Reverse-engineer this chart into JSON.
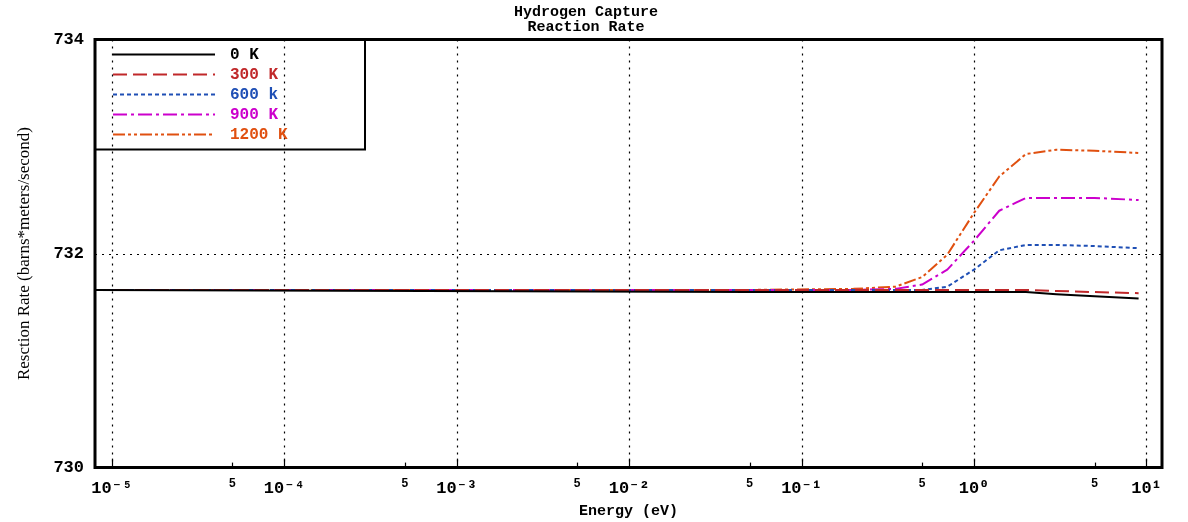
{
  "chart_data": {
    "type": "line",
    "title": "Hydrogen Capture",
    "subtitle": "Reaction Rate",
    "xlabel": "Energy (eV)",
    "ylabel": "Resction Rate (barns*meters/second)",
    "log": "x",
    "grid": true,
    "legend": "top left",
    "marker": "none",
    "xlim": [
      8e-06,
      12.3
    ],
    "ylim": [
      730,
      734
    ],
    "xticks": [
      {
        "value": 1e-05,
        "label": "10⁻⁵"
      },
      {
        "value": 5e-05,
        "label": null
      },
      {
        "value": 0.0001,
        "label": "10⁻⁴"
      },
      {
        "value": 0.0005,
        "label": null
      },
      {
        "value": 0.001,
        "label": "10⁻³"
      },
      {
        "value": 0.005,
        "label": null
      },
      {
        "value": 0.01,
        "label": "10⁻²"
      },
      {
        "value": 0.05,
        "label": null
      },
      {
        "value": 0.1,
        "label": "10⁻¹"
      },
      {
        "value": 0.5,
        "label": null
      },
      {
        "value": 1,
        "label": "10⁰"
      },
      {
        "value": 5,
        "label": null
      },
      {
        "value": 10,
        "label": "10¹"
      }
    ],
    "annotations": [
      "5",
      "5",
      "5",
      "5",
      "5",
      "5"
    ],
    "yticks": [
      730,
      732,
      734
    ],
    "series": [
      {
        "name": "0 K",
        "color": "#000000",
        "line_style": "solid",
        "x": [
          8e-06,
          0.05,
          0.2,
          0.5,
          1,
          2,
          3,
          5,
          9
        ],
        "values": [
          731.66,
          731.64,
          731.64,
          731.64,
          731.64,
          731.64,
          731.62,
          731.6,
          731.58
        ]
      },
      {
        "name": "300 K",
        "color": "#c0282a",
        "line_style": "dashed",
        "x": [
          8e-06,
          0.05,
          0.2,
          0.5,
          1,
          2,
          3,
          5,
          9
        ],
        "values": [
          731.66,
          731.66,
          731.66,
          731.66,
          731.66,
          731.66,
          731.65,
          731.64,
          731.63
        ]
      },
      {
        "name": "600 k",
        "color": "#1f4fb5",
        "line_style": "dotted",
        "x": [
          8e-06,
          0.05,
          0.2,
          0.35,
          0.5,
          0.7,
          1,
          1.4,
          2,
          3,
          5,
          9
        ],
        "values": [
          731.66,
          731.66,
          731.66,
          731.66,
          731.66,
          731.69,
          731.85,
          732.03,
          732.08,
          732.08,
          732.07,
          732.05
        ]
      },
      {
        "name": "900 K",
        "color": "#cc00cc",
        "line_style": "dashdot",
        "x": [
          8e-06,
          0.05,
          0.2,
          0.35,
          0.5,
          0.7,
          1,
          1.4,
          2,
          3,
          5,
          9
        ],
        "values": [
          731.66,
          731.66,
          731.66,
          731.67,
          731.71,
          731.85,
          732.12,
          732.4,
          732.52,
          732.52,
          732.52,
          732.5
        ]
      },
      {
        "name": "1200 K",
        "color": "#e05010",
        "line_style": "dashdotdot",
        "x": [
          8e-06,
          0.05,
          0.2,
          0.35,
          0.5,
          0.7,
          1,
          1.4,
          2,
          3,
          5,
          9
        ],
        "values": [
          731.66,
          731.66,
          731.67,
          731.69,
          731.78,
          731.99,
          732.38,
          732.72,
          732.93,
          732.97,
          732.96,
          732.94
        ]
      }
    ]
  }
}
